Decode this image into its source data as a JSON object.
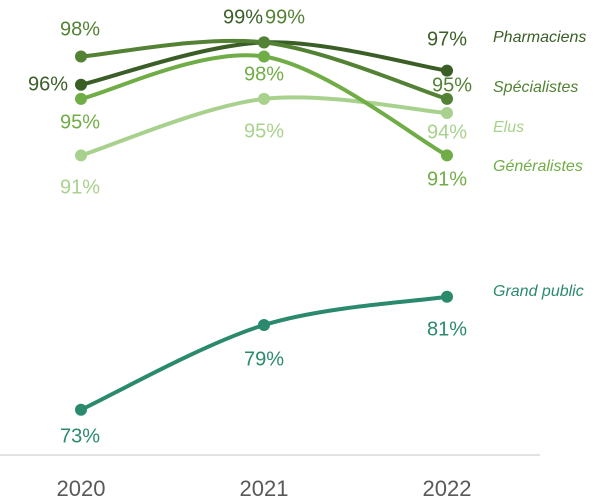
{
  "chart_data": {
    "type": "line",
    "categories": [
      "2020",
      "2021",
      "2022"
    ],
    "ylim": [
      69.8,
      102
    ],
    "series": [
      {
        "name": "Pharmaciens",
        "color": "#3b5e27",
        "values": [
          96,
          99,
          97
        ],
        "value_labels": [
          "96%",
          "99%",
          "97%"
        ]
      },
      {
        "name": "Spécialistes",
        "color": "#548235",
        "values": [
          98,
          99,
          95
        ],
        "value_labels": [
          "98%",
          "99%",
          "95%"
        ]
      },
      {
        "name": "Elus",
        "color": "#a9d18e",
        "values": [
          91,
          95,
          94
        ],
        "value_labels": [
          "91%",
          "95%",
          "94%"
        ]
      },
      {
        "name": "Généralistes",
        "color": "#70ad47",
        "values": [
          95,
          98,
          91
        ],
        "value_labels": [
          "95%",
          "98%",
          "91%"
        ]
      },
      {
        "name": "Grand public",
        "color": "#2b8a6e",
        "values": [
          73,
          79,
          81
        ],
        "value_labels": [
          "73%",
          "79%",
          "81%"
        ]
      }
    ]
  }
}
